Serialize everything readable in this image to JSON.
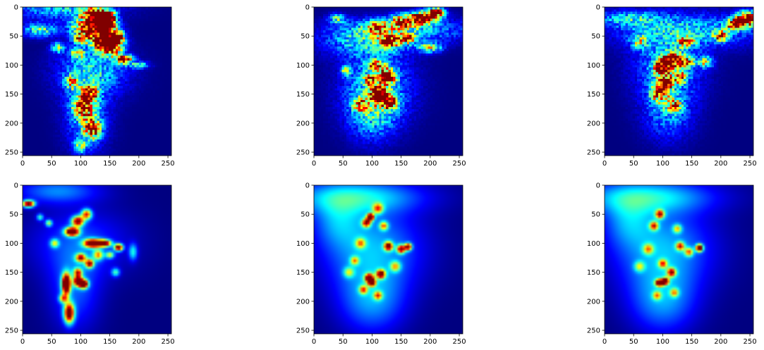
{
  "chart_data": {
    "type": "heatmap",
    "colormap": "jet",
    "grid": false,
    "panels": [
      {
        "id": "top-left",
        "row": 0,
        "col": 0,
        "style": "noisy",
        "xlim": [
          0,
          256
        ],
        "ylim": [
          256,
          0
        ],
        "xticks": [
          0,
          50,
          100,
          150,
          200,
          250
        ],
        "yticks": [
          0,
          50,
          100,
          150,
          200,
          250
        ],
        "hotspots": [
          [
            125,
            15,
            14,
            9,
            1.2
          ],
          [
            145,
            20,
            10,
            8,
            1.3
          ],
          [
            110,
            35,
            18,
            10,
            0.9
          ],
          [
            140,
            40,
            16,
            10,
            1.1
          ],
          [
            160,
            55,
            10,
            8,
            1.1
          ],
          [
            150,
            70,
            14,
            10,
            1.0
          ],
          [
            135,
            60,
            12,
            8,
            0.9
          ],
          [
            100,
            55,
            10,
            6,
            0.7
          ],
          [
            175,
            90,
            10,
            5,
            0.9
          ],
          [
            95,
            80,
            8,
            6,
            0.6
          ],
          [
            60,
            70,
            8,
            6,
            0.5
          ],
          [
            30,
            40,
            20,
            8,
            0.45
          ],
          [
            115,
            150,
            10,
            10,
            0.8
          ],
          [
            105,
            175,
            12,
            12,
            0.7
          ],
          [
            120,
            210,
            10,
            12,
            0.8
          ],
          [
            100,
            240,
            8,
            8,
            0.4
          ],
          [
            85,
            130,
            8,
            8,
            0.5
          ],
          [
            200,
            100,
            12,
            4,
            0.4
          ]
        ],
        "plume": [
          [
            70,
            0,
            60,
            15,
            0.35
          ],
          [
            120,
            110,
            40,
            30,
            0.35
          ],
          [
            110,
            190,
            25,
            40,
            0.3
          ]
        ]
      },
      {
        "id": "top-middle",
        "row": 0,
        "col": 1,
        "style": "noisy",
        "xlim": [
          0,
          256
        ],
        "ylim": [
          256,
          0
        ],
        "xticks": [
          0,
          50,
          100,
          150,
          200,
          250
        ],
        "yticks": [
          0,
          50,
          100,
          150,
          200,
          250
        ],
        "hotspots": [
          [
            185,
            20,
            14,
            8,
            1.2
          ],
          [
            210,
            10,
            10,
            6,
            1.1
          ],
          [
            150,
            25,
            12,
            8,
            0.8
          ],
          [
            110,
            35,
            14,
            8,
            0.6
          ],
          [
            160,
            55,
            10,
            6,
            0.7
          ],
          [
            130,
            60,
            10,
            8,
            0.8
          ],
          [
            105,
            100,
            10,
            6,
            0.7
          ],
          [
            95,
            125,
            8,
            6,
            0.6
          ],
          [
            125,
            120,
            10,
            10,
            0.9
          ],
          [
            80,
            170,
            8,
            8,
            0.6
          ],
          [
            110,
            150,
            10,
            10,
            1.0
          ],
          [
            130,
            165,
            10,
            8,
            0.8
          ],
          [
            55,
            110,
            6,
            6,
            0.5
          ],
          [
            200,
            70,
            14,
            6,
            0.5
          ],
          [
            40,
            20,
            10,
            6,
            0.4
          ]
        ],
        "plume": [
          [
            90,
            60,
            50,
            20,
            0.3
          ],
          [
            110,
            140,
            40,
            40,
            0.35
          ],
          [
            100,
            190,
            30,
            30,
            0.25
          ],
          [
            160,
            40,
            80,
            15,
            0.3
          ]
        ]
      },
      {
        "id": "top-right",
        "row": 0,
        "col": 2,
        "style": "noisy",
        "xlim": [
          0,
          256
        ],
        "ylim": [
          256,
          0
        ],
        "xticks": [
          0,
          50,
          100,
          150,
          200,
          250
        ],
        "yticks": [
          0,
          50,
          100,
          150,
          200,
          250
        ],
        "hotspots": [
          [
            245,
            20,
            12,
            8,
            1.2
          ],
          [
            225,
            30,
            10,
            6,
            1.0
          ],
          [
            200,
            50,
            8,
            6,
            0.8
          ],
          [
            140,
            60,
            10,
            6,
            0.6
          ],
          [
            115,
            90,
            12,
            8,
            0.9
          ],
          [
            100,
            105,
            10,
            8,
            1.0
          ],
          [
            140,
            95,
            10,
            6,
            0.7
          ],
          [
            175,
            95,
            8,
            6,
            0.6
          ],
          [
            105,
            130,
            10,
            8,
            0.8
          ],
          [
            95,
            150,
            10,
            10,
            0.7
          ],
          [
            120,
            170,
            10,
            8,
            0.5
          ],
          [
            130,
            120,
            8,
            8,
            0.6
          ],
          [
            60,
            60,
            10,
            8,
            0.4
          ]
        ],
        "plume": [
          [
            110,
            100,
            40,
            40,
            0.3
          ],
          [
            110,
            180,
            30,
            35,
            0.25
          ],
          [
            150,
            40,
            90,
            20,
            0.3
          ],
          [
            40,
            20,
            40,
            10,
            0.3
          ]
        ]
      },
      {
        "id": "bottom-left",
        "row": 1,
        "col": 0,
        "style": "smooth",
        "xlim": [
          0,
          256
        ],
        "ylim": [
          256,
          0
        ],
        "xticks": [
          0,
          50,
          100,
          150,
          200,
          250
        ],
        "yticks": [
          0,
          50,
          100,
          150,
          200,
          250
        ],
        "hotspots": [
          [
            10,
            32,
            7,
            4,
            1.1
          ],
          [
            85,
            80,
            8,
            5,
            1.3
          ],
          [
            95,
            62,
            7,
            6,
            1.0
          ],
          [
            110,
            50,
            6,
            6,
            0.8
          ],
          [
            120,
            100,
            10,
            5,
            1.2
          ],
          [
            140,
            100,
            8,
            4,
            1.1
          ],
          [
            165,
            107,
            5,
            4,
            1.1
          ],
          [
            75,
            170,
            5,
            12,
            1.4
          ],
          [
            95,
            165,
            5,
            6,
            1.1
          ],
          [
            105,
            170,
            5,
            5,
            1.3
          ],
          [
            80,
            220,
            6,
            12,
            1.1
          ],
          [
            100,
            125,
            6,
            5,
            0.8
          ],
          [
            115,
            135,
            5,
            5,
            0.9
          ],
          [
            95,
            150,
            5,
            5,
            0.7
          ],
          [
            130,
            120,
            6,
            6,
            0.6
          ],
          [
            55,
            100,
            5,
            5,
            0.5
          ],
          [
            45,
            65,
            4,
            4,
            0.5
          ],
          [
            30,
            55,
            4,
            4,
            0.4
          ],
          [
            150,
            120,
            5,
            4,
            0.5
          ],
          [
            160,
            150,
            5,
            5,
            0.4
          ],
          [
            190,
            115,
            5,
            10,
            0.35
          ],
          [
            70,
            195,
            5,
            5,
            0.6
          ]
        ],
        "plume": [
          [
            100,
            100,
            60,
            40,
            0.18
          ],
          [
            90,
            180,
            30,
            50,
            0.2
          ],
          [
            60,
            10,
            50,
            15,
            0.25
          ]
        ]
      },
      {
        "id": "bottom-middle",
        "row": 1,
        "col": 1,
        "style": "smooth",
        "xlim": [
          0,
          256
        ],
        "ylim": [
          256,
          0
        ],
        "xticks": [
          0,
          50,
          100,
          150,
          200,
          250
        ],
        "yticks": [
          0,
          50,
          100,
          150,
          200,
          250
        ],
        "hotspots": [
          [
            97,
            55,
            4,
            4,
            1.4
          ],
          [
            90,
            65,
            5,
            5,
            0.8
          ],
          [
            110,
            40,
            6,
            6,
            0.6
          ],
          [
            128,
            105,
            5,
            5,
            1.0
          ],
          [
            150,
            110,
            5,
            5,
            0.9
          ],
          [
            162,
            106,
            4,
            4,
            1.0
          ],
          [
            95,
            160,
            5,
            5,
            1.1
          ],
          [
            100,
            168,
            4,
            4,
            1.2
          ],
          [
            115,
            153,
            5,
            5,
            1.0
          ],
          [
            110,
            190,
            5,
            5,
            0.6
          ],
          [
            85,
            180,
            5,
            5,
            0.6
          ],
          [
            70,
            130,
            5,
            5,
            0.5
          ],
          [
            120,
            70,
            5,
            5,
            0.6
          ],
          [
            80,
            100,
            6,
            6,
            0.5
          ],
          [
            60,
            150,
            6,
            6,
            0.4
          ],
          [
            140,
            140,
            6,
            6,
            0.5
          ]
        ],
        "plume": [
          [
            100,
            110,
            60,
            50,
            0.3
          ],
          [
            100,
            200,
            40,
            40,
            0.25
          ],
          [
            70,
            20,
            80,
            20,
            0.35
          ],
          [
            40,
            60,
            30,
            30,
            0.2
          ]
        ]
      },
      {
        "id": "bottom-right",
        "row": 1,
        "col": 2,
        "style": "smooth",
        "xlim": [
          0,
          256
        ],
        "ylim": [
          256,
          0
        ],
        "xticks": [
          0,
          50,
          100,
          150,
          200,
          250
        ],
        "yticks": [
          0,
          50,
          100,
          150,
          200,
          250
        ],
        "hotspots": [
          [
            163,
            108,
            4,
            4,
            1.3
          ],
          [
            95,
            168,
            5,
            4,
            1.2
          ],
          [
            105,
            165,
            4,
            4,
            0.9
          ],
          [
            95,
            50,
            5,
            5,
            0.8
          ],
          [
            85,
            70,
            5,
            5,
            0.7
          ],
          [
            115,
            150,
            5,
            5,
            0.8
          ],
          [
            130,
            105,
            5,
            5,
            0.7
          ],
          [
            145,
            115,
            5,
            5,
            0.6
          ],
          [
            100,
            135,
            5,
            5,
            0.6
          ],
          [
            90,
            190,
            5,
            5,
            0.5
          ],
          [
            75,
            110,
            6,
            6,
            0.5
          ],
          [
            120,
            185,
            5,
            5,
            0.5
          ],
          [
            60,
            140,
            6,
            6,
            0.4
          ],
          [
            125,
            75,
            5,
            5,
            0.5
          ]
        ],
        "plume": [
          [
            100,
            110,
            60,
            50,
            0.3
          ],
          [
            100,
            200,
            40,
            40,
            0.25
          ],
          [
            70,
            20,
            80,
            20,
            0.35
          ],
          [
            40,
            60,
            30,
            30,
            0.2
          ]
        ]
      }
    ]
  }
}
